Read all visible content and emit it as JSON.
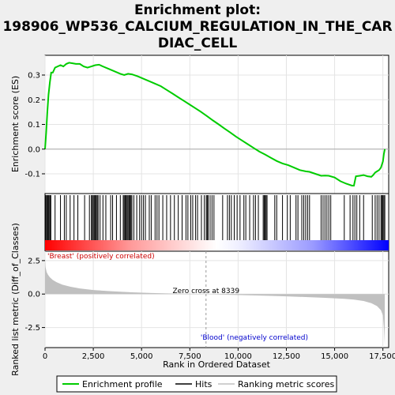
{
  "chart_data": {
    "type": "line",
    "title_line1": "Enrichment plot:",
    "title_line2": "198906_WP536_CALCIUM_REGULATION_IN_THE_CAR",
    "title_line3": "DIAC_CELL",
    "xlabel": "Rank in Ordered Dataset",
    "ylabel_top": "Enrichment score (ES)",
    "ylabel_bottom": "Ranked list metric (Diff_of_Classes)",
    "xlim": [
      0,
      17800
    ],
    "x_ticks": [
      0,
      2500,
      5000,
      7500,
      10000,
      12500,
      15000,
      17500
    ],
    "x_tick_labels": [
      "0",
      "2,500",
      "5,000",
      "7,500",
      "10,000",
      "12,500",
      "15,000",
      "17,500"
    ],
    "es_ylim": [
      -0.18,
      0.38
    ],
    "es_ticks": [
      -0.1,
      0.0,
      0.1,
      0.2,
      0.3
    ],
    "es_tick_labels": [
      "-0.1",
      "0.0",
      "0.1",
      "0.2",
      "0.3"
    ],
    "metric_ylim": [
      -4.0,
      3.2
    ],
    "metric_ticks": [
      -2.5,
      0.0,
      2.5
    ],
    "metric_tick_labels": [
      "-2.5",
      "0.0",
      "2.5"
    ],
    "zero_cross": 8339,
    "zero_cross_label": "Zero cross at 8339",
    "pos_label": "'Breast' (positively correlated)",
    "neg_label": "'Blood' (negatively correlated)",
    "series": [
      {
        "name": "Enrichment profile",
        "color": "#00cc00",
        "x": [
          0,
          60,
          120,
          180,
          250,
          320,
          400,
          520,
          650,
          800,
          950,
          1100,
          1250,
          1400,
          1600,
          1800,
          2000,
          2200,
          2400,
          2600,
          2800,
          3000,
          3300,
          3600,
          3900,
          4100,
          4300,
          4500,
          4800,
          5100,
          5400,
          5700,
          6000,
          6300,
          6600,
          6900,
          7200,
          7500,
          7800,
          8100,
          8400,
          8700,
          9000,
          9300,
          9600,
          9900,
          10200,
          10500,
          10800,
          11100,
          11400,
          11700,
          12000,
          12300,
          12600,
          12900,
          13200,
          13500,
          13700,
          14000,
          14300,
          14500,
          14700,
          15000,
          15300,
          15600,
          15900,
          16000,
          16100,
          16300,
          16500,
          16700,
          16900,
          17000,
          17100,
          17200,
          17300,
          17400,
          17500,
          17550,
          17600
        ],
        "y": [
          0.0,
          0.07,
          0.15,
          0.22,
          0.27,
          0.31,
          0.31,
          0.33,
          0.335,
          0.34,
          0.335,
          0.345,
          0.35,
          0.348,
          0.345,
          0.345,
          0.335,
          0.33,
          0.335,
          0.34,
          0.342,
          0.335,
          0.325,
          0.315,
          0.305,
          0.3,
          0.305,
          0.303,
          0.295,
          0.285,
          0.275,
          0.265,
          0.255,
          0.24,
          0.225,
          0.21,
          0.195,
          0.18,
          0.165,
          0.15,
          0.133,
          0.116,
          0.1,
          0.083,
          0.067,
          0.05,
          0.035,
          0.02,
          0.005,
          -0.01,
          -0.022,
          -0.035,
          -0.048,
          -0.058,
          -0.065,
          -0.075,
          -0.085,
          -0.09,
          -0.092,
          -0.1,
          -0.108,
          -0.107,
          -0.108,
          -0.115,
          -0.13,
          -0.14,
          -0.148,
          -0.148,
          -0.11,
          -0.108,
          -0.105,
          -0.11,
          -0.112,
          -0.105,
          -0.095,
          -0.09,
          -0.085,
          -0.075,
          -0.05,
          -0.02,
          0.0
        ]
      },
      {
        "name": "Hits",
        "color": "#000000",
        "x": [
          40,
          90,
          130,
          170,
          210,
          260,
          300,
          520,
          800,
          1000,
          1100,
          1300,
          1500,
          1700,
          2050,
          2300,
          2400,
          2450,
          2500,
          2550,
          2600,
          2650,
          2700,
          2750,
          2850,
          3000,
          3150,
          3400,
          3500,
          3700,
          3900,
          4050,
          4100,
          4150,
          4200,
          4250,
          4300,
          4350,
          4400,
          4450,
          4500,
          4600,
          4750,
          4900,
          5000,
          5100,
          5200,
          5400,
          5500,
          5700,
          5800,
          5900,
          6100,
          6300,
          6500,
          6700,
          6900,
          7100,
          7300,
          7400,
          7550,
          7650,
          7800,
          7900,
          8100,
          8250,
          8350,
          8400,
          8450,
          8550,
          8650,
          8750,
          9200,
          9450,
          9550,
          9650,
          9800,
          9950,
          10100,
          10300,
          10400,
          10600,
          10800,
          10900,
          11050,
          11300,
          11350,
          11400,
          11450,
          11500,
          11900,
          12000,
          12300,
          12550,
          12700,
          13000,
          13100,
          13300,
          13400,
          13500,
          13600,
          13700,
          14300,
          14400,
          14500,
          14600,
          14700,
          14800,
          15500,
          15800,
          15950,
          16050,
          16150,
          16300,
          16500,
          16950,
          17100,
          17200,
          17300,
          17400,
          17450,
          17500,
          17550,
          17600
        ]
      }
    ],
    "metric": {
      "name": "Ranking metric scores",
      "color": "#c0c0c0",
      "x": [
        0,
        30,
        80,
        150,
        250,
        400,
        600,
        900,
        1300,
        1800,
        2500,
        3500,
        4500,
        5500,
        6500,
        7500,
        8339,
        9500,
        10500,
        11500,
        12500,
        13500,
        14500,
        15500,
        16000,
        16500,
        16900,
        17200,
        17400,
        17500,
        17560,
        17600
      ],
      "y": [
        2.5,
        2.0,
        1.65,
        1.45,
        1.25,
        1.05,
        0.88,
        0.7,
        0.55,
        0.42,
        0.3,
        0.2,
        0.13,
        0.08,
        0.04,
        0.02,
        0.0,
        -0.05,
        -0.09,
        -0.13,
        -0.17,
        -0.22,
        -0.28,
        -0.36,
        -0.42,
        -0.52,
        -0.68,
        -0.9,
        -1.2,
        -1.6,
        -2.6,
        -3.8
      ]
    },
    "legend": {
      "placement": "bottom",
      "items": [
        {
          "label": "Enrichment profile",
          "color": "#00cc00"
        },
        {
          "label": "Hits",
          "color": "#000000"
        },
        {
          "label": "Ranking metric scores",
          "color": "#c0c0c0"
        }
      ]
    },
    "colors": {
      "background": "#efefef",
      "plot_bg": "#ffffff",
      "pos_label": "#cc0000",
      "neg_label": "#0000cc",
      "heat_red": "#ff0000",
      "heat_blue": "#0000ff"
    }
  }
}
